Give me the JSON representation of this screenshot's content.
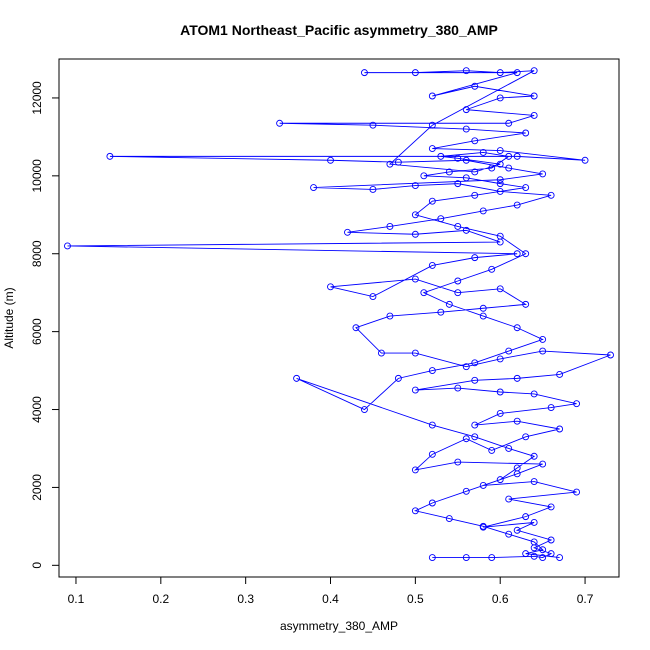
{
  "chart_data": {
    "type": "scatter",
    "title": "ATOM1 Northeast_Pacific asymmetry_380_AMP",
    "xlabel": "asymmetry_380_AMP",
    "ylabel": "Altitude (m)",
    "xlim": [
      0.08,
      0.74
    ],
    "ylim": [
      -300,
      13000
    ],
    "x_ticks": [
      0.1,
      0.2,
      0.3,
      0.4,
      0.5,
      0.6,
      0.7
    ],
    "y_ticks": [
      0,
      2000,
      4000,
      6000,
      8000,
      10000,
      12000
    ],
    "grid": false,
    "legend": "none",
    "series": [
      {
        "color": "#0000ff",
        "marker": "open-circle",
        "connected": true,
        "points": [
          [
            0.52,
            200
          ],
          [
            0.56,
            200
          ],
          [
            0.59,
            200
          ],
          [
            0.64,
            230
          ],
          [
            0.65,
            200
          ],
          [
            0.66,
            300
          ],
          [
            0.64,
            450
          ],
          [
            0.66,
            650
          ],
          [
            0.62,
            900
          ],
          [
            0.64,
            1100
          ],
          [
            0.58,
            980
          ],
          [
            0.63,
            1250
          ],
          [
            0.66,
            1500
          ],
          [
            0.61,
            1700
          ],
          [
            0.69,
            1880
          ],
          [
            0.64,
            2150
          ],
          [
            0.58,
            2050
          ],
          [
            0.62,
            2350
          ],
          [
            0.65,
            2600
          ],
          [
            0.55,
            2650
          ],
          [
            0.5,
            2450
          ],
          [
            0.52,
            2850
          ],
          [
            0.56,
            3250
          ],
          [
            0.59,
            2950
          ],
          [
            0.63,
            3300
          ],
          [
            0.67,
            3500
          ],
          [
            0.62,
            3700
          ],
          [
            0.57,
            3600
          ],
          [
            0.6,
            3900
          ],
          [
            0.66,
            4050
          ],
          [
            0.69,
            4150
          ],
          [
            0.64,
            4400
          ],
          [
            0.6,
            4450
          ],
          [
            0.55,
            4550
          ],
          [
            0.5,
            4500
          ],
          [
            0.57,
            4750
          ],
          [
            0.62,
            4800
          ],
          [
            0.67,
            4900
          ],
          [
            0.73,
            5400
          ],
          [
            0.65,
            5500
          ],
          [
            0.6,
            5300
          ],
          [
            0.56,
            5100
          ],
          [
            0.5,
            5450
          ],
          [
            0.46,
            5450
          ],
          [
            0.43,
            6100
          ],
          [
            0.47,
            6400
          ],
          [
            0.53,
            6500
          ],
          [
            0.58,
            6600
          ],
          [
            0.63,
            6700
          ],
          [
            0.6,
            7100
          ],
          [
            0.55,
            7000
          ],
          [
            0.5,
            7350
          ],
          [
            0.4,
            7150
          ],
          [
            0.45,
            6900
          ],
          [
            0.52,
            7700
          ],
          [
            0.57,
            7900
          ],
          [
            0.62,
            8000
          ],
          [
            0.09,
            8200
          ],
          [
            0.6,
            8300
          ],
          [
            0.56,
            8600
          ],
          [
            0.5,
            8500
          ],
          [
            0.42,
            8550
          ],
          [
            0.47,
            8700
          ],
          [
            0.53,
            8900
          ],
          [
            0.58,
            9100
          ],
          [
            0.62,
            9250
          ],
          [
            0.66,
            9500
          ],
          [
            0.6,
            9600
          ],
          [
            0.55,
            9800
          ],
          [
            0.5,
            9750
          ],
          [
            0.45,
            9650
          ],
          [
            0.38,
            9700
          ],
          [
            0.6,
            9900
          ],
          [
            0.65,
            10050
          ],
          [
            0.61,
            10200
          ],
          [
            0.56,
            10400
          ],
          [
            0.48,
            10350
          ],
          [
            0.4,
            10400
          ],
          [
            0.14,
            10500
          ],
          [
            0.62,
            10500
          ],
          [
            0.7,
            10400
          ],
          [
            0.6,
            10650
          ],
          [
            0.52,
            10700
          ],
          [
            0.57,
            10900
          ],
          [
            0.63,
            11100
          ],
          [
            0.56,
            11200
          ],
          [
            0.45,
            11300
          ],
          [
            0.34,
            11350
          ],
          [
            0.61,
            11350
          ],
          [
            0.64,
            11550
          ],
          [
            0.56,
            11700
          ],
          [
            0.6,
            12000
          ],
          [
            0.64,
            12050
          ],
          [
            0.57,
            12300
          ],
          [
            0.52,
            12050
          ],
          [
            0.62,
            12650
          ],
          [
            0.44,
            12650
          ],
          [
            0.5,
            12650
          ],
          [
            0.56,
            12700
          ],
          [
            0.6,
            12650
          ],
          [
            0.64,
            12700
          ],
          [
            0.52,
            11300
          ],
          [
            0.47,
            10300
          ],
          [
            0.57,
            10100
          ],
          [
            0.6,
            10300
          ],
          [
            0.55,
            10450
          ],
          [
            0.53,
            10500
          ],
          [
            0.58,
            10600
          ],
          [
            0.61,
            10500
          ],
          [
            0.59,
            10200
          ],
          [
            0.54,
            10100
          ],
          [
            0.51,
            10000
          ],
          [
            0.56,
            9950
          ],
          [
            0.6,
            9800
          ],
          [
            0.63,
            9700
          ],
          [
            0.57,
            9500
          ],
          [
            0.52,
            9350
          ],
          [
            0.5,
            9000
          ],
          [
            0.55,
            8700
          ],
          [
            0.6,
            8450
          ],
          [
            0.63,
            8000
          ],
          [
            0.59,
            7600
          ],
          [
            0.55,
            7300
          ],
          [
            0.51,
            7000
          ],
          [
            0.54,
            6700
          ],
          [
            0.58,
            6400
          ],
          [
            0.62,
            6100
          ],
          [
            0.65,
            5800
          ],
          [
            0.61,
            5500
          ],
          [
            0.57,
            5200
          ],
          [
            0.52,
            5000
          ],
          [
            0.48,
            4800
          ],
          [
            0.44,
            4000
          ],
          [
            0.36,
            4800
          ],
          [
            0.52,
            3600
          ],
          [
            0.57,
            3300
          ],
          [
            0.61,
            3000
          ],
          [
            0.64,
            2800
          ],
          [
            0.62,
            2500
          ],
          [
            0.6,
            2200
          ],
          [
            0.56,
            1900
          ],
          [
            0.52,
            1600
          ],
          [
            0.5,
            1400
          ],
          [
            0.54,
            1200
          ],
          [
            0.58,
            1000
          ],
          [
            0.61,
            800
          ],
          [
            0.64,
            600
          ],
          [
            0.65,
            400
          ],
          [
            0.63,
            300
          ],
          [
            0.67,
            200
          ]
        ]
      }
    ]
  }
}
